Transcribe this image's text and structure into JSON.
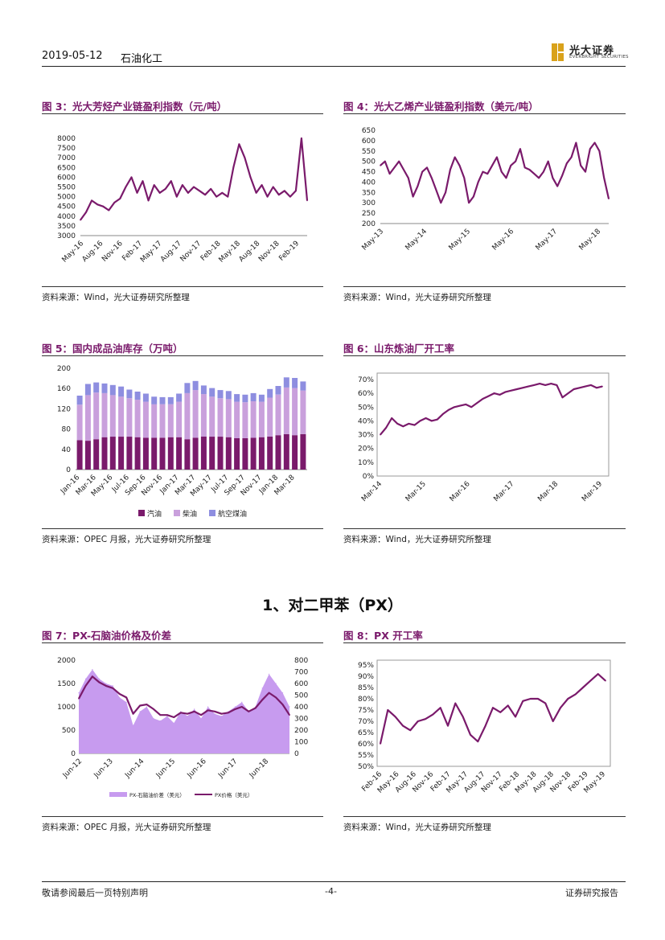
{
  "header": {
    "date": "2019-05-12",
    "sector": "石油化工",
    "logo_cn": "光大证券",
    "logo_en": "EVERBRIGHT SECURITIES"
  },
  "colors": {
    "accent": "#7a1a6b",
    "line": "#7a1a6b",
    "bar_dark": "#7a1a6b",
    "bar_mid": "#c9a0dc",
    "bar_light": "#8e8ee0",
    "area": "#c79bef"
  },
  "figures": {
    "fig3": {
      "title": "图 3：光大芳烃产业链盈利指数（元/吨）",
      "source": "资料来源：Wind，光大证券研究所整理"
    },
    "fig4": {
      "title": "图 4：光大乙烯产业链盈利指数（美元/吨）",
      "source": "资料来源：Wind，光大证券研究所整理"
    },
    "fig5": {
      "title": "图 5：国内成品油库存（万吨）",
      "source": "资料来源：OPEC 月报，光大证券研究所整理"
    },
    "fig6": {
      "title": "图 6：山东炼油厂开工率",
      "source": "资料来源：Wind，光大证券研究所整理"
    },
    "fig7": {
      "title": "图 7：PX-石脑油价格及价差",
      "source": "资料来源：OPEC 月报，光大证券研究所整理"
    },
    "fig8": {
      "title": "图 8：PX 开工率",
      "source": "资料来源：Wind，光大证券研究所整理"
    }
  },
  "section_title": "1、对二甲苯（PX）",
  "footer": {
    "left": "敬请参阅最后一页特别声明",
    "page": "-4-",
    "right": "证券研究报告"
  },
  "chart_data": [
    {
      "id": "fig3",
      "type": "line",
      "x_ticks": [
        "May-16",
        "Aug-16",
        "Nov-16",
        "Feb-17",
        "May-17",
        "Aug-17",
        "Nov-17",
        "Feb-18",
        "May-18",
        "Aug-18",
        "Nov-18",
        "Feb-19"
      ],
      "ylim": [
        3000,
        8000
      ],
      "y_ticks": [
        "3000",
        "3500",
        "4000",
        "4500",
        "5000",
        "5500",
        "6000",
        "6500",
        "7000",
        "7500",
        "8000"
      ],
      "series": [
        {
          "values": [
            3800,
            4200,
            4800,
            4600,
            4500,
            4300,
            4700,
            4900,
            5500,
            6000,
            5200,
            5800,
            4800,
            5600,
            5200,
            5400,
            5800,
            5000,
            5600,
            5200,
            5500,
            5300,
            5100,
            5400,
            5000,
            5200,
            5000,
            6500,
            7700,
            7000,
            6000,
            5200,
            5600,
            5000,
            5500,
            5100,
            5300,
            5000,
            5300,
            8000,
            4800
          ]
        }
      ]
    },
    {
      "id": "fig4",
      "type": "line",
      "x_ticks": [
        "May-13",
        "May-14",
        "May-15",
        "May-16",
        "May-17",
        "May-18"
      ],
      "ylim": [
        200,
        650
      ],
      "y_ticks": [
        "200",
        "250",
        "300",
        "350",
        "400",
        "450",
        "500",
        "550",
        "600",
        "650"
      ],
      "series": [
        {
          "values": [
            480,
            500,
            440,
            470,
            500,
            460,
            420,
            330,
            380,
            450,
            470,
            420,
            360,
            300,
            350,
            460,
            520,
            480,
            420,
            300,
            330,
            400,
            450,
            440,
            480,
            520,
            450,
            420,
            480,
            500,
            560,
            470,
            460,
            440,
            420,
            450,
            500,
            420,
            380,
            430,
            490,
            520,
            590,
            480,
            450,
            560,
            590,
            550,
            420,
            320
          ]
        }
      ]
    },
    {
      "id": "fig5",
      "type": "bar",
      "categories": [
        "Jan-16",
        "",
        "Mar-16",
        "",
        "May-16",
        "",
        "Jul-16",
        "",
        "Sep-16",
        "",
        "Nov-16",
        "",
        "Jan-17",
        "",
        "Mar-17",
        "",
        "May-17",
        "",
        "Jul-17",
        "",
        "Sep-17",
        "",
        "Nov-17",
        "",
        "Jan-18",
        "",
        "Mar-18",
        ""
      ],
      "x_ticks": [
        "Jan-16",
        "Mar-16",
        "May-16",
        "Jul-16",
        "Sep-16",
        "Nov-16",
        "Jan-17",
        "Mar-17",
        "May-17",
        "Jul-17",
        "Sep-17",
        "Nov-17",
        "Jan-18",
        "Mar-18"
      ],
      "ylim": [
        0,
        200
      ],
      "y_ticks": [
        "0",
        "40",
        "80",
        "120",
        "160",
        "200"
      ],
      "legend": [
        "汽油",
        "柴油",
        "航空煤油"
      ],
      "series": [
        {
          "values": [
            58,
            57,
            60,
            64,
            65,
            65,
            65,
            64,
            63,
            63,
            63,
            64,
            64,
            60,
            63,
            65,
            65,
            65,
            64,
            62,
            62,
            63,
            64,
            65,
            68,
            70,
            68,
            70
          ]
        },
        {
          "values": [
            70,
            90,
            92,
            87,
            82,
            79,
            76,
            74,
            71,
            66,
            66,
            65,
            70,
            91,
            94,
            84,
            79,
            76,
            75,
            72,
            71,
            72,
            70,
            77,
            80,
            92,
            93,
            86
          ]
        },
        {
          "values": [
            18,
            22,
            20,
            19,
            20,
            20,
            17,
            16,
            16,
            15,
            14,
            14,
            16,
            20,
            18,
            17,
            17,
            16,
            16,
            15,
            15,
            16,
            14,
            17,
            17,
            20,
            20,
            18
          ]
        }
      ]
    },
    {
      "id": "fig6",
      "type": "line",
      "x_ticks": [
        "Mar-14",
        "Mar-15",
        "Mar-16",
        "Mar-17",
        "Mar-18",
        "Mar-19"
      ],
      "ylim": [
        0,
        70
      ],
      "y_ticks": [
        "0%",
        "10%",
        "20%",
        "30%",
        "40%",
        "50%",
        "60%",
        "70%"
      ],
      "series": [
        {
          "values": [
            30,
            35,
            42,
            38,
            36,
            38,
            37,
            40,
            42,
            40,
            41,
            45,
            48,
            50,
            51,
            52,
            50,
            53,
            56,
            58,
            60,
            59,
            61,
            62,
            63,
            64,
            65,
            66,
            67,
            66,
            67,
            66,
            57,
            60,
            63,
            64,
            65,
            66,
            64,
            65
          ]
        }
      ]
    },
    {
      "id": "fig7",
      "type": "area",
      "x_ticks": [
        "Jun-12",
        "Jun-13",
        "Jun-14",
        "Jun-15",
        "Jun-16",
        "Jun-17",
        "Jun-18"
      ],
      "ylim_left": [
        0,
        2000
      ],
      "ylim_right": [
        0,
        800
      ],
      "y_ticks_left": [
        "0",
        "500",
        "1000",
        "1500",
        "2000"
      ],
      "y_ticks_right": [
        "0",
        "100",
        "200",
        "300",
        "400",
        "500",
        "600",
        "700",
        "800"
      ],
      "legend": [
        "PX-石脑油价差（美元）",
        "PX价格（美元）"
      ],
      "series": [
        {
          "name": "PX-石脑油价差（美元）",
          "axis": "left",
          "values": [
            1300,
            1600,
            1800,
            1600,
            1500,
            1450,
            1200,
            1100,
            600,
            900,
            1000,
            750,
            700,
            800,
            650,
            900,
            800,
            950,
            750,
            1000,
            850,
            800,
            900,
            1000,
            1100,
            900,
            1000,
            1400,
            1700,
            1500,
            1300,
            1000
          ]
        },
        {
          "name": "PX价格（美元）",
          "axis": "right",
          "values": [
            470,
            580,
            660,
            610,
            580,
            560,
            510,
            480,
            340,
            410,
            420,
            380,
            330,
            330,
            310,
            350,
            340,
            360,
            330,
            370,
            360,
            340,
            350,
            380,
            400,
            360,
            390,
            460,
            520,
            480,
            420,
            330
          ]
        }
      ]
    },
    {
      "id": "fig8",
      "type": "line",
      "x_ticks": [
        "Feb-16",
        "May-16",
        "Aug-16",
        "Nov-16",
        "Feb-17",
        "May-17",
        "Aug-17",
        "Nov-17",
        "Feb-18",
        "May-18",
        "Aug-18",
        "Nov-18",
        "Feb-19",
        "May-19"
      ],
      "ylim": [
        50,
        95
      ],
      "y_ticks": [
        "50%",
        "55%",
        "60%",
        "65%",
        "70%",
        "75%",
        "80%",
        "85%",
        "90%",
        "95%"
      ],
      "series": [
        {
          "values": [
            60,
            75,
            72,
            68,
            66,
            70,
            71,
            73,
            76,
            68,
            78,
            72,
            64,
            61,
            68,
            76,
            74,
            77,
            72,
            79,
            80,
            80,
            78,
            70,
            76,
            80,
            82,
            85,
            88,
            91,
            88
          ]
        }
      ]
    }
  ]
}
